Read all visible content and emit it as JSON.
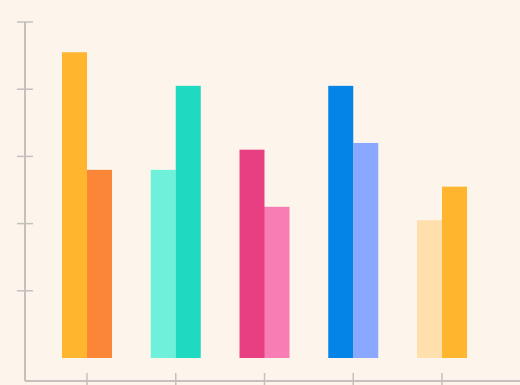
{
  "chart_data": {
    "type": "bar",
    "title": "",
    "xlabel": "",
    "ylabel": "",
    "categories": [
      "",
      "",
      "",
      "",
      ""
    ],
    "ylim": [
      0,
      100
    ],
    "grid": false,
    "legend": "none",
    "background": "#fdf5ec",
    "axis_color": "#c4c0bd",
    "series": [
      {
        "values": [
          91,
          56,
          62,
          81,
          41
        ],
        "colors": [
          "#ffb62e",
          "#6ef0da",
          "#e83e82",
          "#0584e8",
          "#ffe0ad"
        ]
      },
      {
        "values": [
          56,
          81,
          45,
          64,
          51
        ],
        "colors": [
          "#fb8638",
          "#1fdac1",
          "#f97db5",
          "#8aa8ff",
          "#ffb62e"
        ]
      }
    ]
  }
}
